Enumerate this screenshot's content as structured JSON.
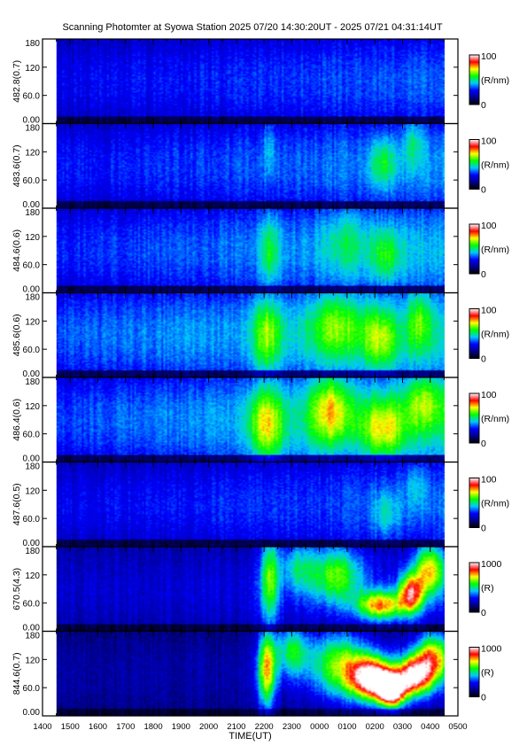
{
  "title": "Scanning Photomter at Syowa Station  2025 07/20 14:30:20UT - 2025 07/21 04:31:14UT",
  "chart_data": {
    "type": "heatmap",
    "xlabel": "TIME(UT)",
    "x_ticks": [
      "1400",
      "1500",
      "1600",
      "1700",
      "1800",
      "1900",
      "2000",
      "2100",
      "2200",
      "2300",
      "0000",
      "0100",
      "0200",
      "0300",
      "0400",
      "0500"
    ],
    "x_range_hours": [
      14,
      29
    ],
    "data_range_hours": [
      14.505,
      28.52
    ],
    "y_range": [
      0,
      180
    ],
    "y_ticks": [
      "0.00",
      "60.0",
      "120",
      "180"
    ],
    "colormap": [
      "#000000",
      "#00008b",
      "#0000ff",
      "#00c8ff",
      "#00ff00",
      "#ffff00",
      "#ff0000",
      "#ffffff"
    ],
    "panels": [
      {
        "ylabel": "482.8(0.7)",
        "cbar_max": "100",
        "cbar_min": "0",
        "unit": "(R/nm)",
        "diffuse": 0.26,
        "rise": 0.1,
        "events": []
      },
      {
        "ylabel": "483.6(0.7)",
        "cbar_max": "100",
        "cbar_min": "0",
        "unit": "(R/nm)",
        "diffuse": 0.28,
        "rise": 0.12,
        "events": [
          {
            "h": 22.2,
            "y": 130,
            "wh": 0.15,
            "wy": 45,
            "amp": 0.12
          },
          {
            "h": 26.3,
            "y": 95,
            "wh": 0.35,
            "wy": 35,
            "amp": 0.18
          },
          {
            "h": 27.4,
            "y": 140,
            "wh": 0.25,
            "wy": 40,
            "amp": 0.15
          }
        ]
      },
      {
        "ylabel": "484.6(0.6)",
        "cbar_max": "100",
        "cbar_min": "0",
        "unit": "(R/nm)",
        "diffuse": 0.3,
        "rise": 0.14,
        "events": [
          {
            "h": 22.2,
            "y": 90,
            "wh": 0.25,
            "wy": 55,
            "amp": 0.18
          },
          {
            "h": 24.9,
            "y": 110,
            "wh": 0.6,
            "wy": 55,
            "amp": 0.12
          },
          {
            "h": 26.4,
            "y": 80,
            "wh": 0.4,
            "wy": 40,
            "amp": 0.16
          }
        ]
      },
      {
        "ylabel": "485.6(0.6)",
        "cbar_max": "100",
        "cbar_min": "0",
        "unit": "(R/nm)",
        "diffuse": 0.34,
        "rise": 0.14,
        "events": [
          {
            "h": 22.1,
            "y": 90,
            "wh": 0.35,
            "wy": 60,
            "amp": 0.26
          },
          {
            "h": 24.6,
            "y": 110,
            "wh": 0.7,
            "wy": 55,
            "amp": 0.22
          },
          {
            "h": 26.2,
            "y": 80,
            "wh": 0.45,
            "wy": 45,
            "amp": 0.22
          },
          {
            "h": 27.6,
            "y": 120,
            "wh": 0.3,
            "wy": 45,
            "amp": 0.18
          }
        ]
      },
      {
        "ylabel": "486.4(0.6)",
        "cbar_max": "100",
        "cbar_min": "0",
        "unit": "(R/nm)",
        "diffuse": 0.32,
        "rise": 0.18,
        "events": [
          {
            "h": 22.1,
            "y": 80,
            "wh": 0.45,
            "wy": 60,
            "amp": 0.32
          },
          {
            "h": 24.4,
            "y": 110,
            "wh": 0.55,
            "wy": 55,
            "amp": 0.32
          },
          {
            "h": 26.3,
            "y": 70,
            "wh": 0.55,
            "wy": 45,
            "amp": 0.28
          },
          {
            "h": 27.8,
            "y": 130,
            "wh": 0.5,
            "wy": 45,
            "amp": 0.22
          }
        ]
      },
      {
        "ylabel": "487.6(0.5)",
        "cbar_max": "100",
        "cbar_min": "0",
        "unit": "(R/nm)",
        "diffuse": 0.26,
        "rise": 0.1,
        "events": [
          {
            "h": 26.4,
            "y": 70,
            "wh": 0.35,
            "wy": 35,
            "amp": 0.14
          },
          {
            "h": 27.5,
            "y": 130,
            "wh": 0.3,
            "wy": 40,
            "amp": 0.12
          }
        ]
      },
      {
        "ylabel": "670.5(4.3)",
        "cbar_max": "1000",
        "cbar_min": "0",
        "unit": "(R)",
        "diffuse": 0.22,
        "rise": 0.05,
        "events": [
          {
            "h": 22.2,
            "y": 110,
            "wh": 0.25,
            "wy": 70,
            "amp": 0.38
          },
          {
            "h": 23.2,
            "y": 140,
            "wh": 0.45,
            "wy": 40,
            "amp": 0.22
          },
          {
            "h": 24.6,
            "y": 120,
            "wh": 0.7,
            "wy": 45,
            "amp": 0.38
          },
          {
            "h": 26.2,
            "y": 55,
            "wh": 0.6,
            "wy": 22,
            "amp": 0.55
          },
          {
            "h": 27.3,
            "y": 80,
            "wh": 0.3,
            "wy": 30,
            "amp": 0.6
          },
          {
            "h": 28.0,
            "y": 130,
            "wh": 0.4,
            "wy": 40,
            "amp": 0.5
          }
        ]
      },
      {
        "ylabel": "844.6(0.7)",
        "cbar_max": "1000",
        "cbar_min": "0",
        "unit": "(R)",
        "diffuse": 0.16,
        "rise": 0.05,
        "events": [
          {
            "h": 22.1,
            "y": 100,
            "wh": 0.25,
            "wy": 60,
            "amp": 0.55
          },
          {
            "h": 23.0,
            "y": 140,
            "wh": 0.45,
            "wy": 40,
            "amp": 0.35
          },
          {
            "h": 24.7,
            "y": 110,
            "wh": 0.75,
            "wy": 50,
            "amp": 0.45
          },
          {
            "h": 25.9,
            "y": 80,
            "wh": 0.55,
            "wy": 32,
            "amp": 0.85
          },
          {
            "h": 26.6,
            "y": 55,
            "wh": 0.35,
            "wy": 25,
            "amp": 0.9
          },
          {
            "h": 27.4,
            "y": 85,
            "wh": 0.4,
            "wy": 30,
            "amp": 0.75
          },
          {
            "h": 28.1,
            "y": 120,
            "wh": 0.45,
            "wy": 40,
            "amp": 0.6
          }
        ]
      }
    ]
  }
}
